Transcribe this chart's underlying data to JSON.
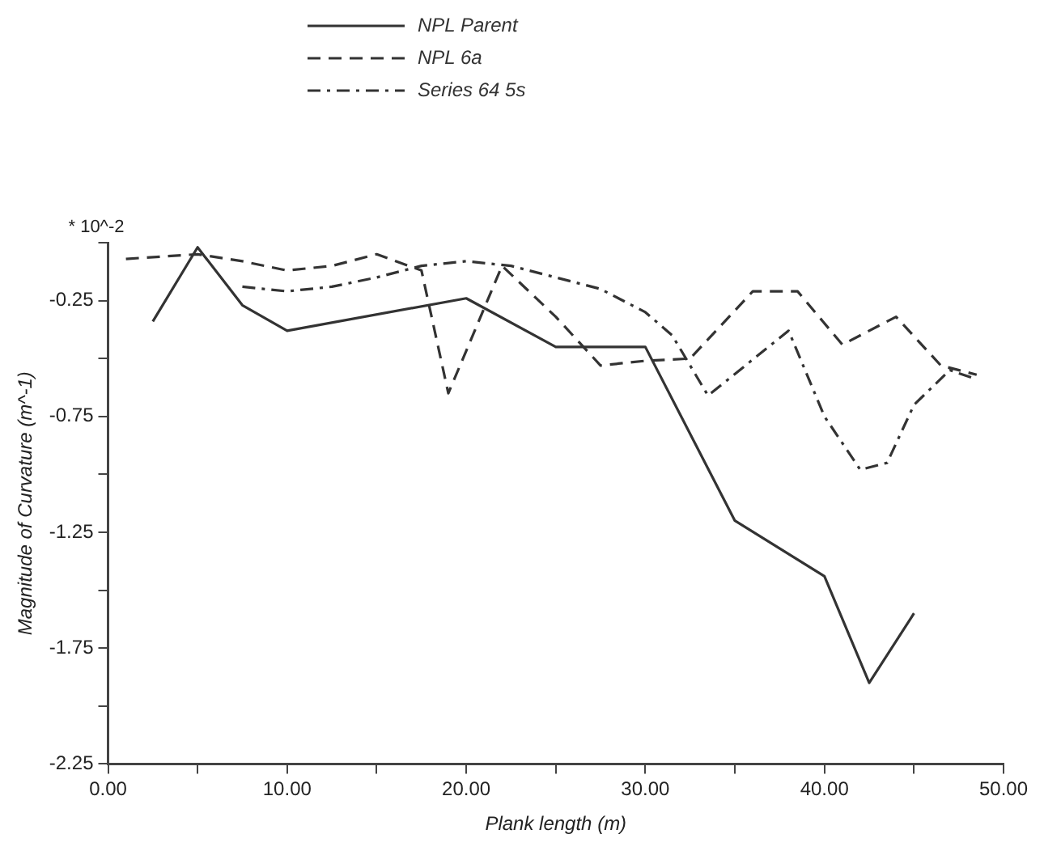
{
  "chart_data": {
    "type": "line",
    "xlabel": "Plank length (m)",
    "ylabel": "Magnitude of Curvature (m^-1)",
    "annotations": [
      "* 10^-2"
    ],
    "xlim": [
      0,
      50
    ],
    "xticks": [
      {
        "value": 0,
        "label": "0.00"
      },
      {
        "value": 5,
        "label": null
      },
      {
        "value": 10,
        "label": "10.00"
      },
      {
        "value": 15,
        "label": null
      },
      {
        "value": 20,
        "label": "20.00"
      },
      {
        "value": 25,
        "label": null
      },
      {
        "value": 30,
        "label": "30.00"
      },
      {
        "value": 35,
        "label": null
      },
      {
        "value": 40,
        "label": "40.00"
      },
      {
        "value": 45,
        "label": null
      },
      {
        "value": 50,
        "label": "50.00"
      }
    ],
    "ylim": [
      -2.25,
      0
    ],
    "yticks": [
      -2.25,
      {
        "value": -2,
        "label": null
      },
      -1.75,
      {
        "value": -1.5,
        "label": null
      },
      -1.25,
      {
        "value": -1,
        "label": null
      },
      -0.75,
      {
        "value": -0.5,
        "label": null
      },
      -0.25,
      {
        "value": 0,
        "label": null
      }
    ],
    "grid": false,
    "legend": "top",
    "marker": "none",
    "series": [
      {
        "name": "NPL Parent",
        "color": "#333333",
        "line_style": "solid",
        "x": [
          2.5,
          5,
          7.5,
          10,
          20,
          25,
          30,
          35,
          40,
          42.5,
          45
        ],
        "values": [
          -0.34,
          -0.02,
          -0.27,
          -0.38,
          -0.24,
          -0.45,
          -0.45,
          -1.2,
          -1.44,
          -1.9,
          -1.6
        ]
      },
      {
        "name": "NPL 6a",
        "color": "#333333",
        "line_style": "dashed",
        "x": [
          1,
          5,
          7.5,
          10,
          12.5,
          15,
          17.5,
          19,
          22,
          25,
          27.5,
          30,
          32.5,
          36,
          38.5,
          41,
          44,
          46.5,
          48.5
        ],
        "values": [
          -0.07,
          -0.05,
          -0.08,
          -0.12,
          -0.1,
          -0.05,
          -0.12,
          -0.65,
          -0.1,
          -0.32,
          -0.53,
          -0.51,
          -0.5,
          -0.21,
          -0.21,
          -0.44,
          -0.32,
          -0.53,
          -0.57
        ]
      },
      {
        "name": "Series 64 5s",
        "color": "#333333",
        "line_style": "dashdot",
        "x": [
          7.5,
          10,
          12.5,
          15,
          17.5,
          20,
          22.5,
          25,
          27.5,
          30,
          31.5,
          33.5,
          38,
          40,
          42,
          43.5,
          45,
          47,
          48.5
        ],
        "values": [
          -0.19,
          -0.21,
          -0.19,
          -0.15,
          -0.1,
          -0.08,
          -0.1,
          -0.15,
          -0.2,
          -0.3,
          -0.4,
          -0.66,
          -0.38,
          -0.75,
          -0.98,
          -0.95,
          -0.7,
          -0.55,
          -0.59
        ]
      }
    ]
  }
}
